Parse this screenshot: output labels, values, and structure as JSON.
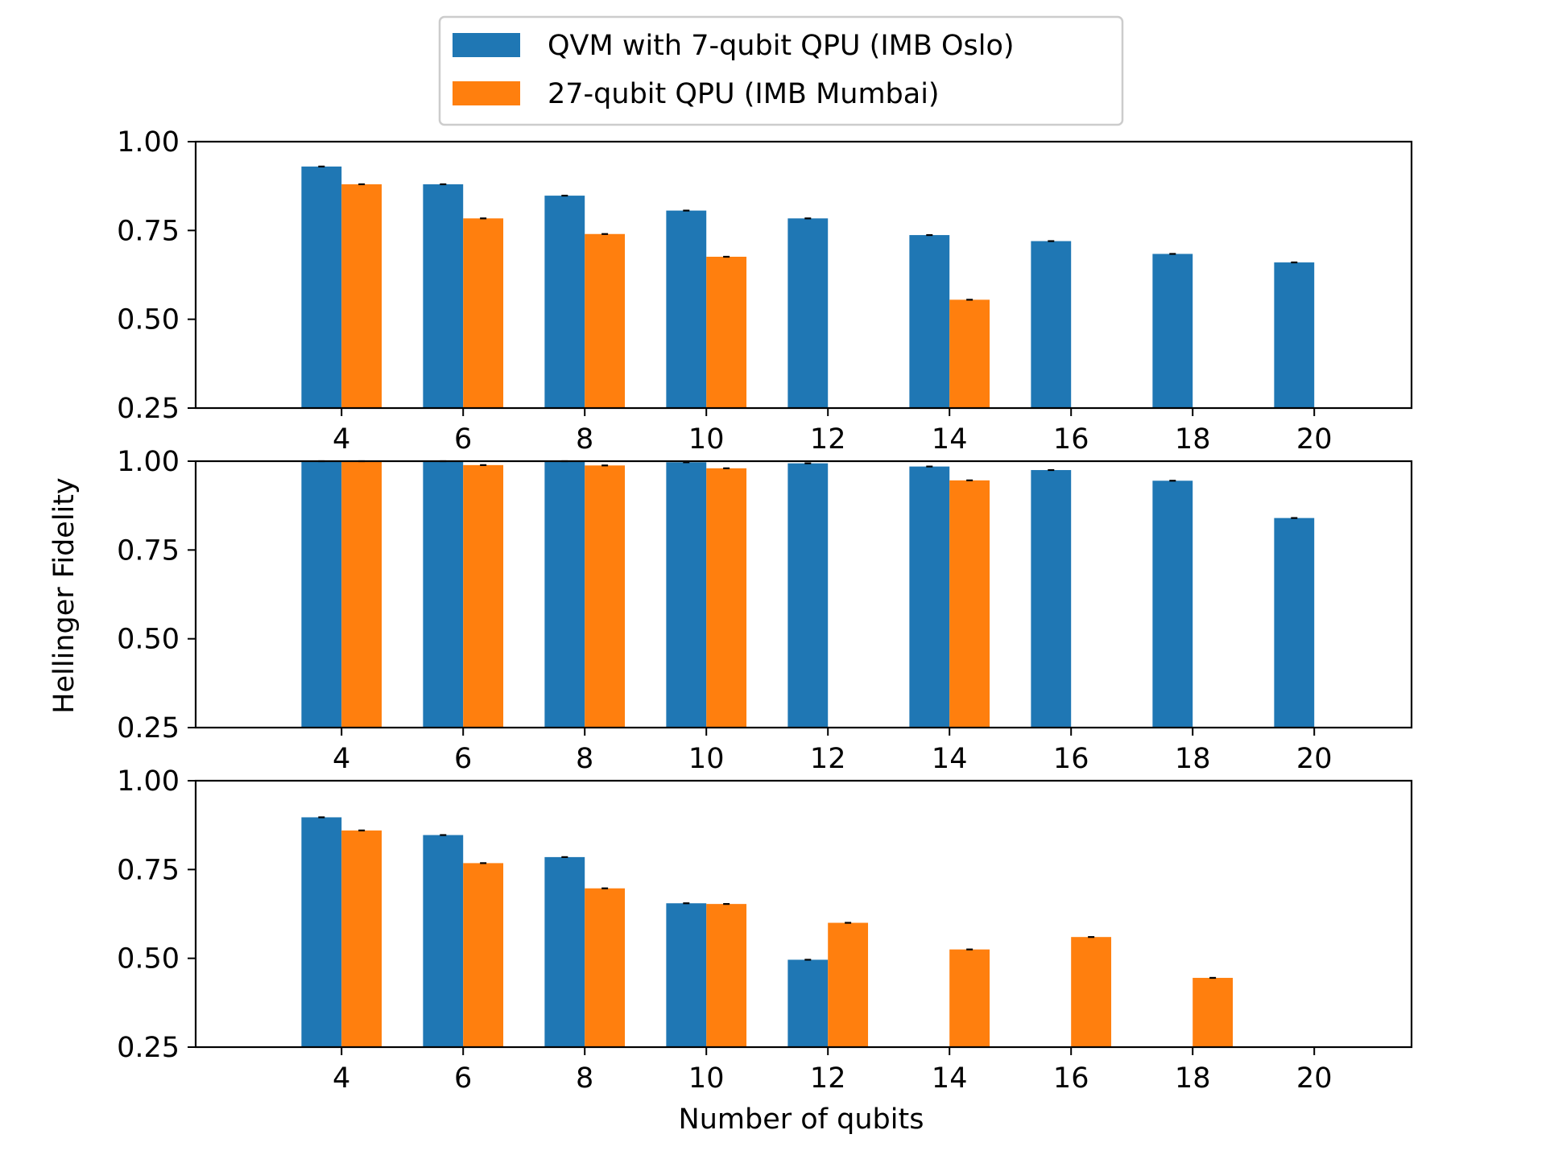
{
  "colors": {
    "series_0": "#1f77b4",
    "series_1": "#ff7f0e",
    "errorbar": "#000000"
  },
  "legend": {
    "placement": "top-center",
    "entries": [
      "QVM with 7-qubit QPU (IMB Oslo)",
      "27-qubit QPU (IMB Mumbai)"
    ]
  },
  "chart_data": [
    {
      "type": "bar",
      "title": "",
      "x": [
        4,
        6,
        8,
        10,
        12,
        14,
        16,
        18,
        20
      ],
      "tick_labels": [
        "4",
        "6",
        "8",
        "10",
        "12",
        "14",
        "16",
        "18",
        "20"
      ],
      "ylim": [
        0.25,
        1.0
      ],
      "yticks": [
        "0.25",
        "0.50",
        "0.75",
        "1.00"
      ],
      "series": [
        {
          "name": "QVM with 7-qubit QPU (IMB Oslo)",
          "values": [
            0.93,
            0.88,
            0.848,
            0.806,
            0.784,
            0.737,
            0.72,
            0.684,
            0.66
          ]
        },
        {
          "name": "27-qubit QPU (IMB Mumbai)",
          "values": [
            0.88,
            0.784,
            0.74,
            0.676,
            null,
            0.555,
            null,
            null,
            null
          ]
        }
      ]
    },
    {
      "type": "bar",
      "title": "",
      "x": [
        4,
        6,
        8,
        10,
        12,
        14,
        16,
        18,
        20
      ],
      "tick_labels": [
        "4",
        "6",
        "8",
        "10",
        "12",
        "14",
        "16",
        "18",
        "20"
      ],
      "ylim": [
        0.25,
        1.0
      ],
      "yticks": [
        "0.25",
        "0.50",
        "0.75",
        "1.00"
      ],
      "series": [
        {
          "name": "QVM with 7-qubit QPU (IMB Oslo)",
          "values": [
            1.0,
            1.0,
            1.0,
            0.997,
            0.994,
            0.985,
            0.975,
            0.945,
            0.84
          ]
        },
        {
          "name": "27-qubit QPU (IMB Mumbai)",
          "values": [
            1.0,
            0.989,
            0.988,
            0.98,
            null,
            0.946,
            null,
            null,
            null
          ]
        }
      ]
    },
    {
      "type": "bar",
      "title": "",
      "x": [
        4,
        6,
        8,
        10,
        12,
        14,
        16,
        18,
        20
      ],
      "tick_labels": [
        "4",
        "6",
        "8",
        "10",
        "12",
        "14",
        "16",
        "18",
        "20"
      ],
      "ylim": [
        0.25,
        1.0
      ],
      "yticks": [
        "0.25",
        "0.50",
        "0.75",
        "1.00"
      ],
      "series": [
        {
          "name": "QVM with 7-qubit QPU (IMB Oslo)",
          "values": [
            0.897,
            0.847,
            0.785,
            0.655,
            0.496,
            null,
            null,
            null,
            null
          ]
        },
        {
          "name": "27-qubit QPU (IMB Mumbai)",
          "values": [
            0.86,
            0.768,
            0.697,
            0.653,
            0.6,
            0.525,
            0.56,
            0.445,
            null
          ]
        }
      ]
    }
  ],
  "xlabel": "Number of qubits",
  "ylabel": "Hellinger Fidelity"
}
